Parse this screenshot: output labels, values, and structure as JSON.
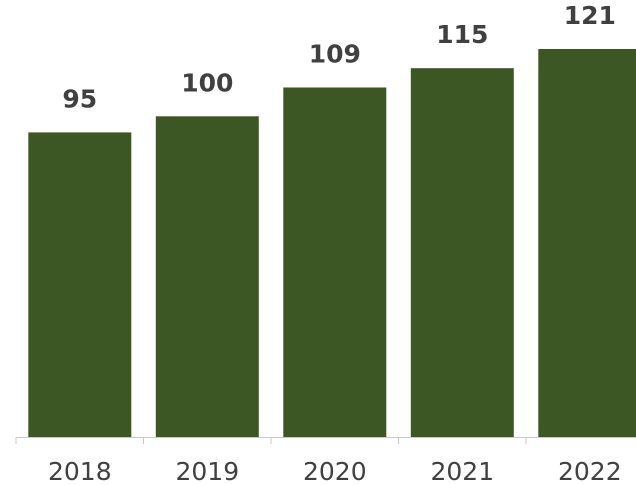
{
  "chart_data": {
    "type": "bar",
    "categories": [
      "2018",
      "2019",
      "2020",
      "2021",
      "2022"
    ],
    "values": [
      95,
      100,
      109,
      115,
      121
    ],
    "title": "",
    "xlabel": "",
    "ylabel": "",
    "data_labels": [
      "95",
      "100",
      "109",
      "115",
      "121"
    ],
    "ylim": [
      0,
      125
    ],
    "grid": false,
    "legend": "none"
  },
  "colors": {
    "bar": "#3c5723",
    "axis": "#c8c8c8",
    "label_text": "#404040"
  }
}
